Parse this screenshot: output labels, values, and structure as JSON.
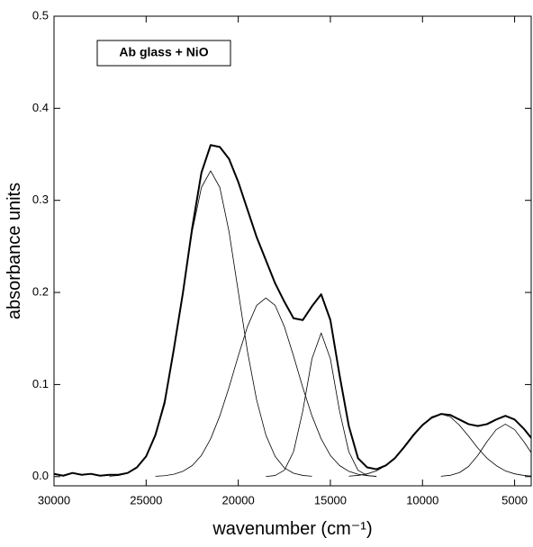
{
  "chart_data": {
    "type": "line",
    "x_label": "wavenumber (cm⁻¹)",
    "y_label": "absorbance units",
    "annotation": "Ab glass + NiO",
    "xlim": [
      30000,
      4100
    ],
    "xticks": [
      30000,
      25000,
      20000,
      15000,
      10000,
      5000
    ],
    "ylim": [
      -0.01,
      0.5
    ],
    "yticks": [
      {
        "value": 0,
        "label": "0.0"
      },
      0.1,
      0.2,
      0.3,
      0.4,
      0.5
    ],
    "grid": false,
    "series": [
      {
        "color": "#000000",
        "width": 2,
        "x": [
          30000,
          29500,
          29000,
          28500,
          28000,
          27500,
          27000,
          26500,
          26000,
          25500,
          25000,
          24500,
          24000,
          23500,
          23000,
          22500,
          22000,
          21500,
          21000,
          20500,
          20000,
          19500,
          19000,
          18500,
          18000,
          17500,
          17000,
          16500,
          16000,
          15500,
          15000,
          14500,
          14000,
          13500,
          13000,
          12500,
          12000,
          11500,
          11000,
          10500,
          10000,
          9500,
          9000,
          8500,
          8000,
          7500,
          7000,
          6500,
          6000,
          5500,
          5000,
          4500,
          4100
        ],
        "values": [
          0.003,
          0.001,
          0.004,
          0.002,
          0.003,
          0.001,
          0.002,
          0.002,
          0.004,
          0.01,
          0.022,
          0.045,
          0.08,
          0.138,
          0.2,
          0.27,
          0.33,
          0.36,
          0.358,
          0.345,
          0.32,
          0.29,
          0.26,
          0.235,
          0.21,
          0.19,
          0.172,
          0.17,
          0.185,
          0.198,
          0.17,
          0.11,
          0.055,
          0.02,
          0.01,
          0.008,
          0.012,
          0.02,
          0.032,
          0.045,
          0.056,
          0.064,
          0.068,
          0.067,
          0.062,
          0.057,
          0.055,
          0.057,
          0.062,
          0.066,
          0.062,
          0.052,
          0.042
        ]
      },
      {
        "color": "#000000",
        "width": 0.8,
        "x": [
          27000,
          26500,
          26000,
          25500,
          25000,
          24500,
          24000,
          23500,
          23000,
          22500,
          22000,
          21500,
          21000,
          20500,
          20000,
          19500,
          19000,
          18500,
          18000,
          17500,
          17000,
          16500,
          16000
        ],
        "values": [
          0.0004,
          0.0013,
          0.0037,
          0.0095,
          0.022,
          0.045,
          0.083,
          0.136,
          0.201,
          0.266,
          0.314,
          0.332,
          0.314,
          0.266,
          0.201,
          0.136,
          0.083,
          0.045,
          0.022,
          0.0095,
          0.0037,
          0.0013,
          0.0004
        ]
      },
      {
        "color": "#000000",
        "width": 0.8,
        "x": [
          24500,
          24000,
          23500,
          23000,
          22500,
          22000,
          21500,
          21000,
          20500,
          20000,
          19500,
          19000,
          18500,
          18000,
          17500,
          17000,
          16500,
          16000,
          15500,
          15000,
          14500,
          14000,
          13500,
          13000,
          12500
        ],
        "values": [
          0.0004,
          0.001,
          0.0026,
          0.0058,
          0.012,
          0.023,
          0.041,
          0.066,
          0.097,
          0.131,
          0.163,
          0.186,
          0.194,
          0.186,
          0.163,
          0.131,
          0.097,
          0.066,
          0.041,
          0.023,
          0.012,
          0.0058,
          0.0026,
          0.001,
          0.0004
        ]
      },
      {
        "color": "#000000",
        "width": 0.8,
        "x": [
          18500,
          18000,
          17500,
          17000,
          16500,
          16000,
          15500,
          15000,
          14500,
          14000,
          13500,
          13000,
          12500
        ],
        "values": [
          0.0001,
          0.0012,
          0.0069,
          0.027,
          0.071,
          0.128,
          0.156,
          0.128,
          0.071,
          0.027,
          0.0069,
          0.0012,
          0.0001
        ]
      },
      {
        "color": "#000000",
        "width": 0.8,
        "x": [
          14000,
          13500,
          13000,
          12500,
          12000,
          11500,
          11000,
          10500,
          10000,
          9500,
          9000,
          8500,
          8000,
          7500,
          7000,
          6500,
          6000,
          5500,
          5000,
          4500,
          4100
        ],
        "values": [
          0.0005,
          0.0013,
          0.003,
          0.0062,
          0.012,
          0.02,
          0.031,
          0.044,
          0.056,
          0.065,
          0.068,
          0.065,
          0.056,
          0.044,
          0.031,
          0.02,
          0.012,
          0.0062,
          0.003,
          0.0013,
          0.0006
        ]
      },
      {
        "color": "#000000",
        "width": 0.8,
        "x": [
          9000,
          8500,
          8000,
          7500,
          7000,
          6500,
          6000,
          5500,
          5000,
          4500,
          4100
        ],
        "values": [
          0.0004,
          0.0014,
          0.0043,
          0.011,
          0.023,
          0.038,
          0.051,
          0.057,
          0.051,
          0.038,
          0.026
        ]
      }
    ]
  }
}
